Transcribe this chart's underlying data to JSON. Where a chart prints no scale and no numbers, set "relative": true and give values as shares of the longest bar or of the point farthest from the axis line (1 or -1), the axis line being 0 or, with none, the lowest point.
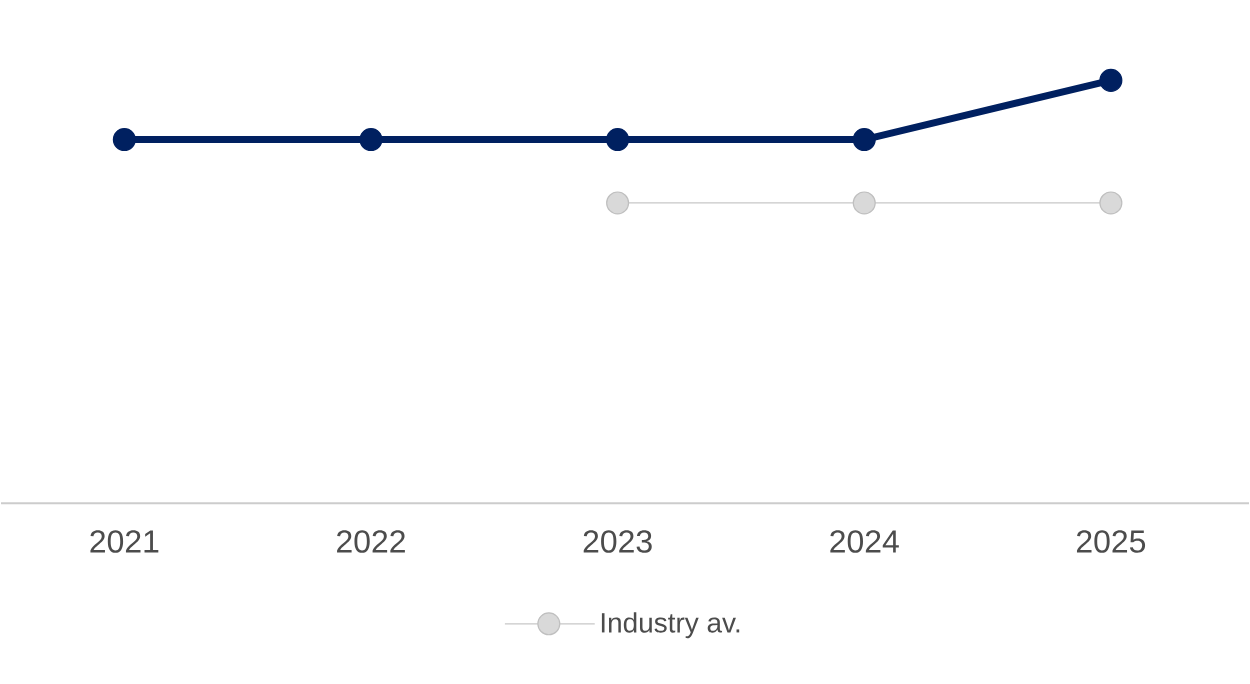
{
  "chart_data": {
    "type": "line",
    "relative": true,
    "categories": [
      "2021",
      "2022",
      "2023",
      "2024",
      "2025"
    ],
    "marker": "circle",
    "legend": "bottom",
    "series": [
      {
        "color": "#002060",
        "values": [
          0.86,
          0.86,
          0.86,
          0.86,
          1
        ]
      },
      {
        "name": "Industry av.",
        "color": "#d9d9d9",
        "values": [
          null,
          null,
          0.71,
          0.71,
          0.71
        ]
      }
    ]
  }
}
